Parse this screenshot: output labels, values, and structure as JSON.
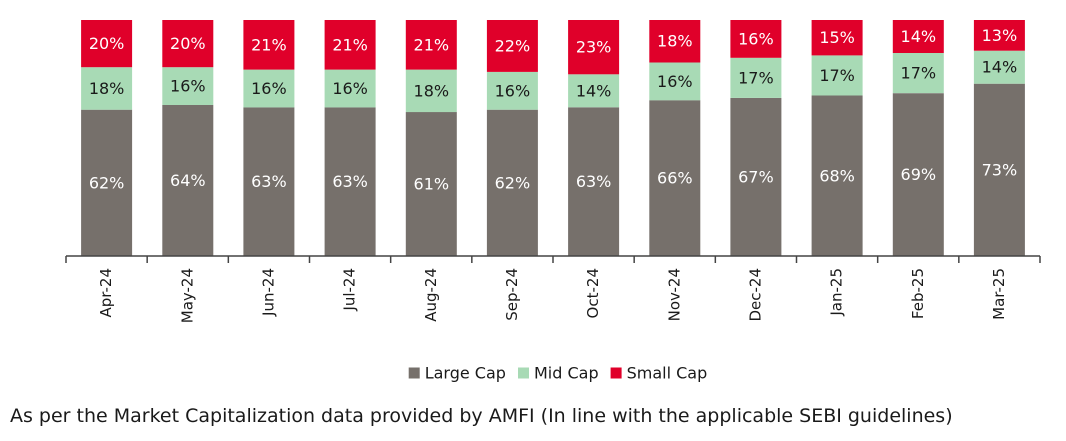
{
  "chart_data": {
    "type": "bar",
    "stacked": true,
    "categories": [
      "Apr-24",
      "May-24",
      "Jun-24",
      "Jul-24",
      "Aug-24",
      "Sep-24",
      "Oct-24",
      "Nov-24",
      "Dec-24",
      "Jan-25",
      "Feb-25",
      "Mar-25"
    ],
    "series": [
      {
        "name": "Large Cap",
        "color": "#76706b",
        "label_color": "#ffffff",
        "values": [
          62,
          64,
          63,
          63,
          61,
          62,
          63,
          66,
          67,
          68,
          69,
          73
        ]
      },
      {
        "name": "Mid Cap",
        "color": "#a8dab5",
        "label_color": "#1a1a1a",
        "values": [
          18,
          16,
          16,
          16,
          18,
          16,
          14,
          16,
          17,
          17,
          17,
          14
        ]
      },
      {
        "name": "Small Cap",
        "color": "#e0002a",
        "label_color": "#ffffff",
        "values": [
          20,
          20,
          21,
          21,
          21,
          22,
          23,
          18,
          16,
          15,
          14,
          13
        ]
      }
    ],
    "value_suffix": "%",
    "ylim": [
      0,
      100
    ],
    "grid": false,
    "legend_position": "bottom"
  },
  "footnote": "As per the Market Capitalization data provided by AMFI (In line with the applicable SEBI guidelines)"
}
